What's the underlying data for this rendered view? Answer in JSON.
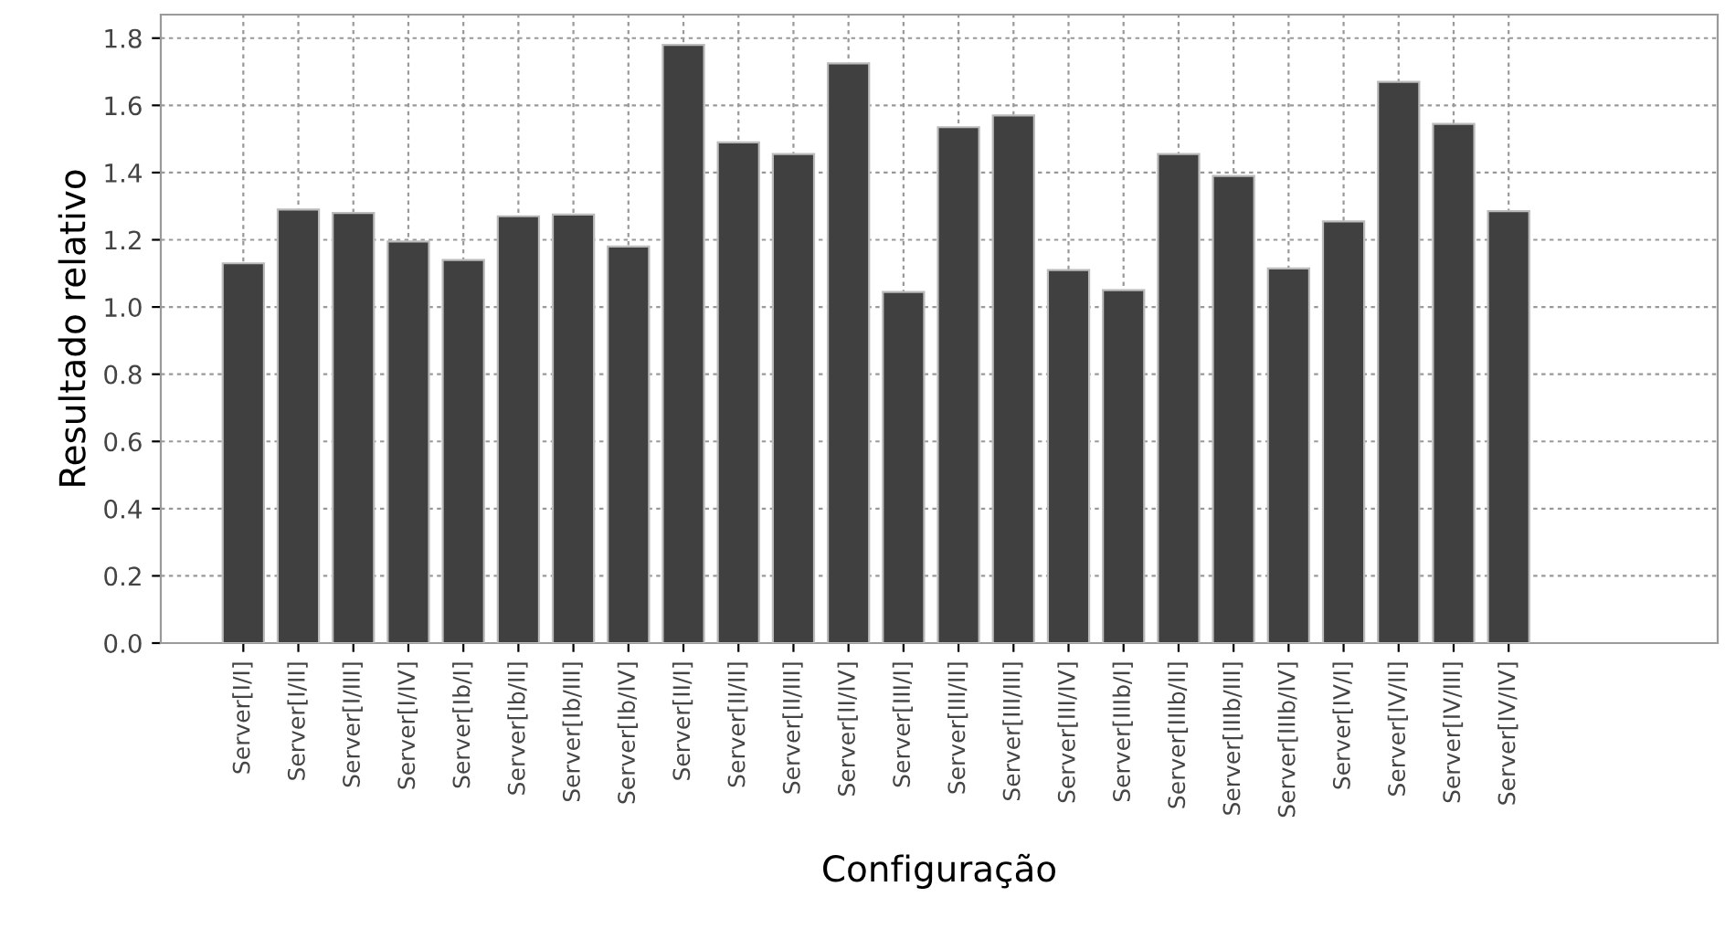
{
  "chart_data": {
    "type": "bar",
    "xlabel": "Configuração",
    "ylabel": "Resultado relativo",
    "categories": [
      "Server[I/I]",
      "Server[I/II]",
      "Server[I/III]",
      "Server[I/IV]",
      "Server[Ib/I]",
      "Server[Ib/II]",
      "Server[Ib/III]",
      "Server[Ib/IV]",
      "Server[II/I]",
      "Server[II/II]",
      "Server[II/III]",
      "Server[II/IV]",
      "Server[III/I]",
      "Server[III/II]",
      "Server[III/III]",
      "Server[III/IV]",
      "Server[IIIb/I]",
      "Server[IIIb/II]",
      "Server[IIIb/III]",
      "Server[IIIb/IV]",
      "Server[IV/I]",
      "Server[IV/II]",
      "Server[IV/III]",
      "Server[IV/IV]"
    ],
    "values": [
      1.13,
      1.29,
      1.28,
      1.195,
      1.14,
      1.27,
      1.275,
      1.18,
      1.78,
      1.49,
      1.455,
      1.725,
      1.045,
      1.535,
      1.57,
      1.11,
      1.05,
      1.455,
      1.39,
      1.115,
      1.255,
      1.67,
      1.545,
      1.285
    ],
    "color": "#404040",
    "ylim": [
      0,
      1.87
    ],
    "yticks": [
      {
        "value": 0,
        "label": "0.0"
      },
      {
        "value": 0.2,
        "label": "0.2"
      },
      {
        "value": 0.4,
        "label": "0.4"
      },
      {
        "value": 0.6,
        "label": "0.6"
      },
      {
        "value": 0.8,
        "label": "0.8"
      },
      {
        "value": 1.0,
        "label": "1.0"
      },
      {
        "value": 1.2,
        "label": "1.2"
      },
      {
        "value": 1.4,
        "label": "1.4"
      },
      {
        "value": 1.6,
        "label": "1.6"
      },
      {
        "value": 1.8,
        "label": "1.8"
      }
    ],
    "grid": true,
    "legend": false
  }
}
